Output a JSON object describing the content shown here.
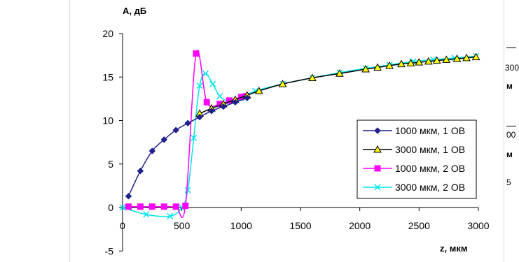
{
  "chart_data": {
    "type": "line",
    "title": "",
    "ylabel": "A, дБ",
    "xlabel": "z, мкм",
    "xlim": [
      0,
      3000
    ],
    "ylim": [
      -5,
      20
    ],
    "x_ticks": [
      "0",
      "500",
      "1000",
      "1500",
      "2000",
      "2500",
      "3000"
    ],
    "y_ticks": [
      "20",
      "15",
      "10",
      "5",
      "0",
      "-5"
    ],
    "grid": false,
    "legend_position": "right",
    "series": [
      {
        "name": "1000 мкм, 1 ОВ",
        "color": "#1f1f8f",
        "marker": "diamond",
        "points": [
          [
            50,
            1.3
          ],
          [
            150,
            4.2
          ],
          [
            250,
            6.5
          ],
          [
            350,
            7.8
          ],
          [
            450,
            8.9
          ],
          [
            550,
            9.7
          ],
          [
            650,
            10.4
          ],
          [
            750,
            11.1
          ],
          [
            850,
            11.6
          ],
          [
            950,
            12.1
          ],
          [
            1050,
            12.6
          ]
        ]
      },
      {
        "name": "3000 мкм, 1 ОВ",
        "color": "#000000",
        "marker": "triangle",
        "points": [
          [
            650,
            10.8
          ],
          [
            750,
            11.4
          ],
          [
            850,
            11.9
          ],
          [
            950,
            12.4
          ],
          [
            1050,
            12.9
          ],
          [
            1150,
            13.4
          ],
          [
            1350,
            14.2
          ],
          [
            1600,
            14.9
          ],
          [
            1830,
            15.4
          ],
          [
            2050,
            15.9
          ],
          [
            2150,
            16.1
          ],
          [
            2250,
            16.3
          ],
          [
            2350,
            16.5
          ],
          [
            2430,
            16.6
          ],
          [
            2500,
            16.7
          ],
          [
            2580,
            16.8
          ],
          [
            2650,
            16.9
          ],
          [
            2730,
            17.0
          ],
          [
            2820,
            17.1
          ],
          [
            2900,
            17.2
          ],
          [
            2980,
            17.3
          ]
        ]
      },
      {
        "name": "1000 мкм, 2 ОВ",
        "color": "#ff00ff",
        "marker": "square",
        "points": [
          [
            50,
            0.1
          ],
          [
            150,
            0.1
          ],
          [
            250,
            0.1
          ],
          [
            350,
            0.1
          ],
          [
            450,
            0.1
          ],
          [
            530,
            0.2
          ],
          [
            620,
            17.7
          ],
          [
            710,
            12.1
          ],
          [
            820,
            11.9
          ],
          [
            900,
            12.3
          ],
          [
            1000,
            12.7
          ],
          [
            1040,
            12.8
          ]
        ]
      },
      {
        "name": "3000 мкм, 2 ОВ",
        "color": "#00e5ee",
        "marker": "x",
        "points": [
          [
            0,
            0.0
          ],
          [
            200,
            -0.8
          ],
          [
            400,
            -1.0
          ],
          [
            500,
            0.0
          ],
          [
            550,
            2.0
          ],
          [
            600,
            8.0
          ],
          [
            650,
            14.0
          ],
          [
            700,
            15.4
          ],
          [
            760,
            14.2
          ],
          [
            820,
            12.8
          ],
          [
            900,
            12.2
          ],
          [
            1000,
            12.6
          ],
          [
            1120,
            13.4
          ],
          [
            1350,
            14.2
          ],
          [
            1600,
            14.9
          ],
          [
            1830,
            15.5
          ],
          [
            2050,
            16.0
          ],
          [
            2250,
            16.4
          ],
          [
            2450,
            16.8
          ],
          [
            2620,
            17.0
          ],
          [
            2800,
            17.2
          ],
          [
            2980,
            17.4
          ]
        ]
      }
    ]
  },
  "side_fragments": [
    "300",
    "м",
    "00",
    "м",
    "5"
  ]
}
